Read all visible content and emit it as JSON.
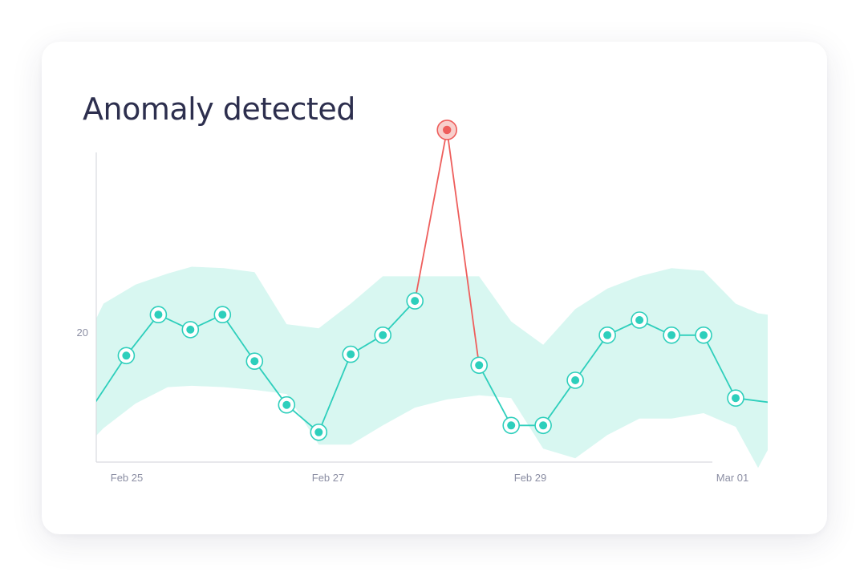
{
  "card": {
    "title": "Anomaly detected"
  },
  "chart_data": {
    "type": "line",
    "title": "Anomaly detected",
    "xlabel": "",
    "ylabel": "",
    "x_tick_labels": [
      "Feb 25",
      "Feb 27",
      "Feb 29",
      "Mar 01"
    ],
    "y_tick_labels": [
      "20"
    ],
    "y_ticks": [
      20
    ],
    "x_range": [
      0,
      20.96
    ],
    "y_range": [
      9.7,
      35.5
    ],
    "grid": false,
    "legend": "none",
    "colors": {
      "line": "#2ecfbc",
      "band_fill": "#d8f7f1",
      "anomaly": "#ee5e5c",
      "anomaly_halo": "#f8cfcc",
      "axis": "#d9dae0",
      "label": "#8b8ea3"
    },
    "series": [
      {
        "x": [
          0,
          0.96,
          1.96,
          2.96,
          3.96,
          4.96,
          5.96,
          6.96,
          7.96,
          8.96,
          9.96,
          10.96,
          11.96,
          12.96,
          13.96,
          14.96,
          15.96,
          16.96,
          17.96,
          18.96,
          19.96,
          20.96
        ],
        "values": [
          14.9,
          18.3,
          21.3,
          20.2,
          21.3,
          17.9,
          14.7,
          12.7,
          18.4,
          19.8,
          22.3,
          34.8,
          17.6,
          13.2,
          13.2,
          16.5,
          19.8,
          20.9,
          19.8,
          19.8,
          15.2,
          14.9
        ],
        "markers": [
          false,
          true,
          true,
          true,
          true,
          true,
          true,
          true,
          true,
          true,
          true,
          true,
          true,
          true,
          true,
          true,
          true,
          true,
          true,
          true,
          true,
          false
        ]
      }
    ],
    "anomaly_points": [
      {
        "x": 10.96,
        "value": 34.8
      }
    ],
    "expected_band": {
      "x": [
        0,
        0.25,
        1.25,
        2.25,
        3.0,
        4.0,
        4.96,
        5.96,
        6.96,
        7.96,
        8.96,
        9.96,
        10.96,
        11.96,
        12.96,
        13.96,
        14.96,
        15.96,
        16.96,
        17.96,
        18.96,
        19.96,
        20.66,
        20.96
      ],
      "upper": [
        20.9,
        22.1,
        23.5,
        24.3,
        24.8,
        24.7,
        24.4,
        20.6,
        20.3,
        22.1,
        24.1,
        24.1,
        24.1,
        24.1,
        20.8,
        19.1,
        21.7,
        23.2,
        24.1,
        24.7,
        24.5,
        22.1,
        21.4,
        21.3
      ],
      "lower": [
        12.4,
        13.0,
        14.8,
        16.0,
        16.1,
        16.0,
        15.8,
        15.5,
        11.8,
        11.8,
        13.2,
        14.5,
        15.1,
        15.4,
        15.2,
        11.5,
        10.8,
        12.5,
        13.7,
        13.7,
        14.1,
        13.1,
        10.1,
        11.4
      ]
    },
    "annotations": []
  }
}
